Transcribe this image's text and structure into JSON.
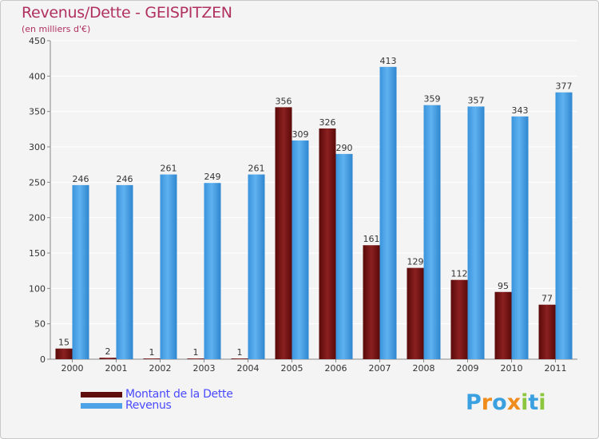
{
  "header": {
    "title": "Revenus/Dette - GEISPITZEN",
    "subtitle": "(en milliers d'€)"
  },
  "legend": {
    "items": [
      {
        "label": "Montant de la Dette",
        "color": "#7a1010"
      },
      {
        "label": "Revenus",
        "color": "#4da3e8"
      }
    ]
  },
  "logo": {
    "text": "Proxiti",
    "letters": [
      {
        "ch": "P",
        "color": "#3aa0e0"
      },
      {
        "ch": "r",
        "color": "#f08c1c"
      },
      {
        "ch": "o",
        "color": "#3aa0e0"
      },
      {
        "ch": "x",
        "color": "#f08c1c"
      },
      {
        "ch": "i",
        "color": "#8cc63f"
      },
      {
        "ch": "t",
        "color": "#3aa0e0"
      },
      {
        "ch": "i",
        "color": "#8cc63f"
      }
    ]
  },
  "chart_data": {
    "type": "bar",
    "title": "Revenus/Dette - GEISPITZEN",
    "subtitle": "(en milliers d'€)",
    "categories": [
      "2000",
      "2001",
      "2002",
      "2003",
      "2004",
      "2005",
      "2006",
      "2007",
      "2008",
      "2009",
      "2010",
      "2011"
    ],
    "series": [
      {
        "name": "Montant de la Dette",
        "color": "#7a1010",
        "values": [
          15,
          2,
          1,
          1,
          1,
          356,
          326,
          161,
          129,
          112,
          95,
          77
        ]
      },
      {
        "name": "Revenus",
        "color": "#4da3e8",
        "values": [
          246,
          246,
          261,
          249,
          261,
          309,
          290,
          413,
          359,
          357,
          343,
          377
        ]
      }
    ],
    "ylim": [
      0,
      450
    ],
    "yticks": [
      0,
      50,
      100,
      150,
      200,
      250,
      300,
      350,
      400,
      450
    ],
    "grid": true,
    "legend_position": "bottom-left"
  }
}
